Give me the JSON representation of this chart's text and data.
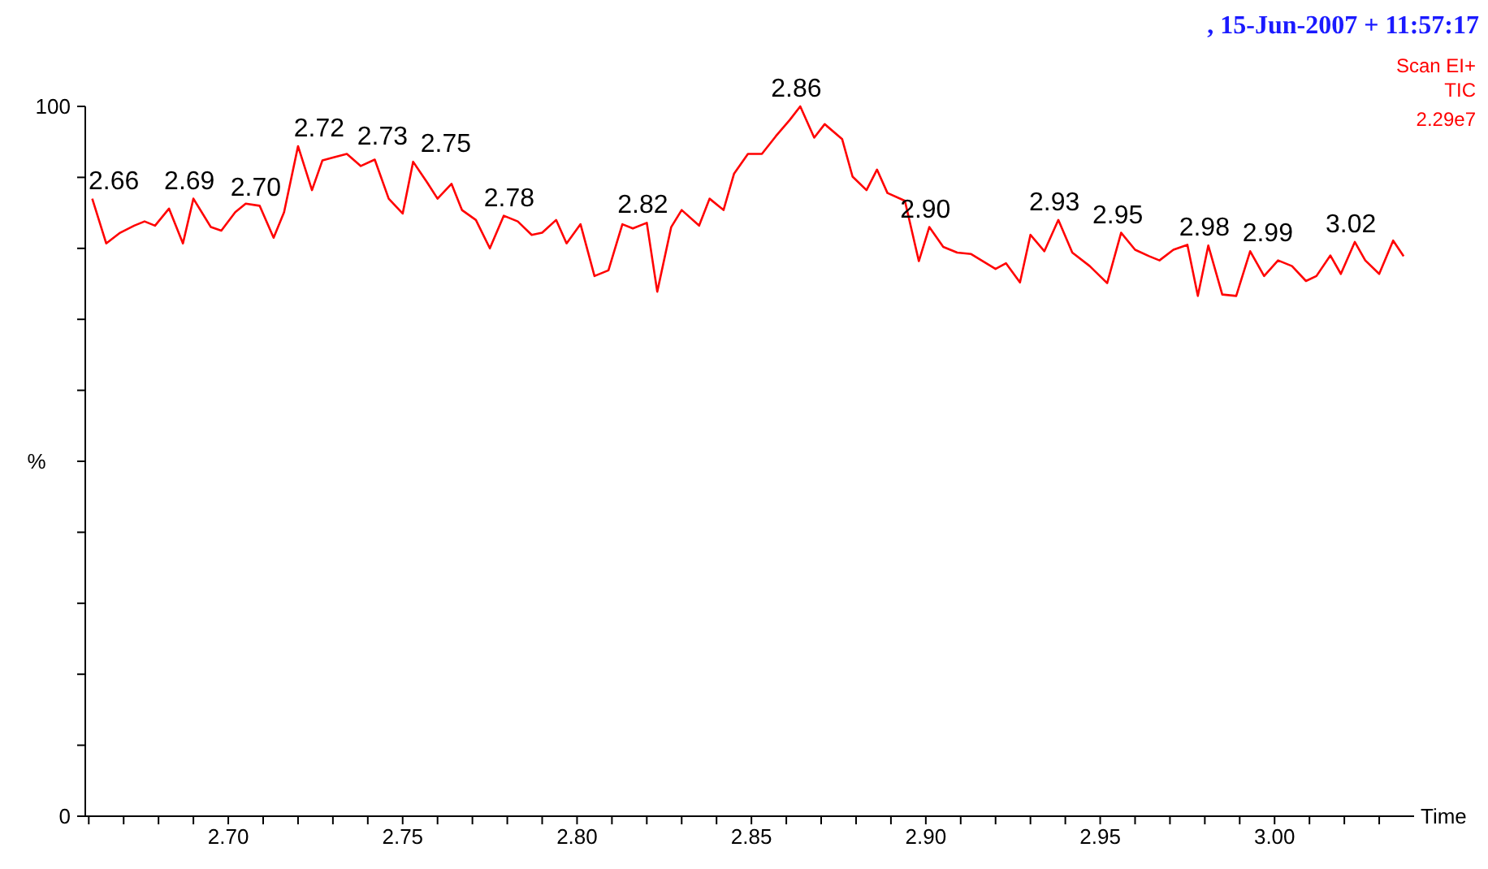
{
  "chart_data": {
    "type": "line",
    "xlabel": "Time",
    "ylabel": "%",
    "xlim": [
      2.659,
      3.04
    ],
    "xticks": [
      {
        "value": 2.66,
        "label": null
      },
      {
        "value": 2.67,
        "label": null
      },
      {
        "value": 2.68,
        "label": null
      },
      {
        "value": 2.69,
        "label": null
      },
      {
        "value": 2.7,
        "label": "2.70"
      },
      {
        "value": 2.71,
        "label": null
      },
      {
        "value": 2.72,
        "label": null
      },
      {
        "value": 2.73,
        "label": null
      },
      {
        "value": 2.74,
        "label": null
      },
      {
        "value": 2.75,
        "label": "2.75"
      },
      {
        "value": 2.76,
        "label": null
      },
      {
        "value": 2.77,
        "label": null
      },
      {
        "value": 2.78,
        "label": null
      },
      {
        "value": 2.79,
        "label": null
      },
      {
        "value": 2.8,
        "label": "2.80"
      },
      {
        "value": 2.81,
        "label": null
      },
      {
        "value": 2.82,
        "label": null
      },
      {
        "value": 2.83,
        "label": null
      },
      {
        "value": 2.84,
        "label": null
      },
      {
        "value": 2.85,
        "label": "2.85"
      },
      {
        "value": 2.86,
        "label": null
      },
      {
        "value": 2.87,
        "label": null
      },
      {
        "value": 2.88,
        "label": null
      },
      {
        "value": 2.89,
        "label": null
      },
      {
        "value": 2.9,
        "label": "2.90"
      },
      {
        "value": 2.91,
        "label": null
      },
      {
        "value": 2.92,
        "label": null
      },
      {
        "value": 2.93,
        "label": null
      },
      {
        "value": 2.94,
        "label": null
      },
      {
        "value": 2.95,
        "label": "2.95"
      },
      {
        "value": 2.96,
        "label": null
      },
      {
        "value": 2.97,
        "label": null
      },
      {
        "value": 2.98,
        "label": null
      },
      {
        "value": 2.99,
        "label": null
      },
      {
        "value": 3.0,
        "label": "3.00"
      },
      {
        "value": 3.01,
        "label": null
      },
      {
        "value": 3.02,
        "label": null
      },
      {
        "value": 3.03,
        "label": null
      }
    ],
    "ylim": [
      0,
      100
    ],
    "yticks": [
      0,
      {
        "value": 10,
        "label": null
      },
      {
        "value": 20,
        "label": null
      },
      {
        "value": 30,
        "label": null
      },
      {
        "value": 40,
        "label": null
      },
      {
        "value": 50,
        "label": null
      },
      {
        "value": 60,
        "label": null
      },
      {
        "value": 70,
        "label": null
      },
      {
        "value": 80,
        "label": null
      },
      {
        "value": 90,
        "label": null
      },
      100
    ],
    "grid": false,
    "marker": "none",
    "line_style": "solid",
    "series": [
      {
        "color": "#ff0000",
        "x": [
          2.661,
          2.665,
          2.669,
          2.673,
          2.676,
          2.679,
          2.683,
          2.687,
          2.69,
          2.695,
          2.698,
          2.702,
          2.705,
          2.709,
          2.713,
          2.716,
          2.72,
          2.724,
          2.727,
          2.73,
          2.734,
          2.738,
          2.742,
          2.746,
          2.75,
          2.753,
          2.757,
          2.76,
          2.764,
          2.767,
          2.771,
          2.775,
          2.779,
          2.783,
          2.787,
          2.79,
          2.794,
          2.797,
          2.801,
          2.805,
          2.809,
          2.813,
          2.816,
          2.82,
          2.823,
          2.827,
          2.83,
          2.835,
          2.838,
          2.842,
          2.845,
          2.849,
          2.853,
          2.857,
          2.861,
          2.864,
          2.868,
          2.871,
          2.876,
          2.879,
          2.883,
          2.886,
          2.889,
          2.894,
          2.898,
          2.901,
          2.905,
          2.909,
          2.913,
          2.92,
          2.923,
          2.927,
          2.93,
          2.934,
          2.938,
          2.942,
          2.947,
          2.952,
          2.956,
          2.96,
          2.964,
          2.967,
          2.971,
          2.975,
          2.978,
          2.981,
          2.985,
          2.989,
          2.993,
          2.997,
          3.001,
          3.005,
          3.009,
          3.012,
          3.016,
          3.019,
          3.023,
          3.026,
          3.03,
          3.034,
          3.037
        ],
        "values": [
          87.0,
          80.7,
          82.2,
          83.2,
          83.8,
          83.2,
          85.6,
          80.7,
          87.0,
          83.0,
          82.5,
          85.1,
          86.3,
          86.0,
          81.5,
          85.1,
          94.4,
          88.2,
          92.4,
          92.8,
          93.3,
          91.6,
          92.5,
          87.0,
          84.9,
          92.2,
          89.3,
          87.0,
          89.1,
          85.4,
          84.0,
          80.0,
          84.6,
          83.8,
          81.9,
          82.2,
          84.0,
          80.7,
          83.4,
          76.1,
          76.9,
          83.4,
          82.8,
          83.6,
          73.9,
          83.0,
          85.4,
          83.2,
          87.0,
          85.4,
          90.5,
          93.3,
          93.3,
          95.8,
          98.1,
          100,
          95.6,
          97.5,
          95.4,
          90.1,
          88.2,
          91.1,
          87.8,
          86.7,
          78.2,
          83.0,
          80.2,
          79.4,
          79.2,
          77.1,
          77.9,
          75.2,
          81.9,
          79.6,
          84.0,
          79.4,
          77.5,
          75.1,
          82.2,
          79.8,
          78.9,
          78.3,
          79.8,
          80.5,
          73.3,
          80.4,
          73.5,
          73.3,
          79.6,
          76.1,
          78.3,
          77.5,
          75.4,
          76.1,
          79.0,
          76.4,
          80.9,
          78.3,
          76.4,
          81.1,
          78.9
        ]
      }
    ],
    "annotations": [
      ", 15-Jun-2007 + 11:57:17",
      "Scan EI+",
      "TIC",
      "2.29e7",
      {
        "text": "2.66",
        "x": 2.661,
        "y": 87.0
      },
      {
        "text": "2.69",
        "x": 2.69,
        "y": 87.0
      },
      {
        "text": "2.70",
        "x": 2.709,
        "y": 86.0
      },
      {
        "text": "2.72",
        "x": 2.72,
        "y": 94.4
      },
      {
        "text": "2.73",
        "x": 2.734,
        "y": 93.3
      },
      {
        "text": "2.75",
        "x": 2.753,
        "y": 92.2
      },
      {
        "text": "2.78",
        "x": 2.779,
        "y": 84.6
      },
      {
        "text": "2.82",
        "x": 2.82,
        "y": 83.6
      },
      {
        "text": "2.86",
        "x": 2.864,
        "y": 100
      },
      {
        "text": "2.90",
        "x": 2.901,
        "y": 83.0
      },
      {
        "text": "2.93",
        "x": 2.938,
        "y": 84.0
      },
      {
        "text": "2.95",
        "x": 2.956,
        "y": 82.2
      },
      {
        "text": "2.98",
        "x": 2.981,
        "y": 80.4
      },
      {
        "text": "2.99",
        "x": 2.993,
        "y": 79.6
      },
      {
        "text": "3.02",
        "x": 3.023,
        "y": 80.9
      }
    ]
  }
}
